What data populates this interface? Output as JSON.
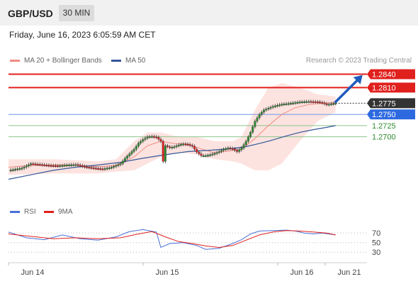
{
  "header": {
    "symbol": "GBP/USD",
    "timeframe": "30 MIN"
  },
  "timestamp": "Friday, June 16, 2023 6:05:59 AM CET",
  "legend": {
    "ma20": {
      "label": "MA 20 + Bollinger Bands",
      "color": "#f08a80"
    },
    "ma50": {
      "label": "MA 50",
      "color": "#34589a"
    },
    "credit": "Research © 2023 Trading Central"
  },
  "levels": [
    {
      "label": "1.2840",
      "value": 1.284,
      "style": "resistance",
      "color": "#e0201d"
    },
    {
      "label": "1.2810",
      "value": 1.281,
      "style": "resistance",
      "color": "#e0201d"
    },
    {
      "label": "1.2775",
      "value": 1.2775,
      "style": "last",
      "color": "#333333"
    },
    {
      "label": "1.2750",
      "value": 1.275,
      "style": "pivot",
      "color": "#2d6ae0"
    },
    {
      "label": "1.2725",
      "value": 1.2725,
      "style": "support",
      "color": "#2e8b2e"
    },
    {
      "label": "1.2700",
      "value": 1.27,
      "style": "support",
      "color": "#2e8b2e"
    }
  ],
  "rsi_legend": {
    "rsi": "RSI",
    "ma": "9MA",
    "rsi_color": "#4a6fd6",
    "ma_color": "#e0201d"
  },
  "rsi_levels": [
    "70",
    "50",
    "30"
  ],
  "x_axis": [
    "Jun 14",
    "Jun 15",
    "Jun 16",
    "Jun 21"
  ],
  "chart_data": {
    "type": "candlestick",
    "price": {
      "points": [
        [
          0,
          1.2625
        ],
        [
          6,
          1.263
        ],
        [
          10,
          1.264
        ],
        [
          14,
          1.2638
        ],
        [
          18,
          1.2636
        ],
        [
          22,
          1.2635
        ],
        [
          26,
          1.2637
        ],
        [
          30,
          1.2638
        ],
        [
          34,
          1.2633
        ],
        [
          38,
          1.263
        ],
        [
          42,
          1.2628
        ],
        [
          46,
          1.2632
        ],
        [
          50,
          1.264
        ],
        [
          52,
          1.2652
        ],
        [
          54,
          1.2662
        ],
        [
          56,
          1.2672
        ],
        [
          58,
          1.2686
        ],
        [
          60,
          1.2694
        ],
        [
          62,
          1.27
        ],
        [
          64,
          1.2701
        ],
        [
          66,
          1.2699
        ],
        [
          68,
          1.269
        ],
        [
          69,
          1.2645
        ],
        [
          70,
          1.268
        ],
        [
          72,
          1.2676
        ],
        [
          74,
          1.2678
        ],
        [
          76,
          1.2682
        ],
        [
          78,
          1.2684
        ],
        [
          80,
          1.2683
        ],
        [
          82,
          1.2679
        ],
        [
          84,
          1.2666
        ],
        [
          86,
          1.2658
        ],
        [
          88,
          1.2658
        ],
        [
          90,
          1.266
        ],
        [
          92,
          1.2663
        ],
        [
          94,
          1.2667
        ],
        [
          96,
          1.2672
        ],
        [
          98,
          1.2675
        ],
        [
          100,
          1.2673
        ],
        [
          102,
          1.2667
        ],
        [
          104,
          1.2675
        ],
        [
          106,
          1.269
        ],
        [
          108,
          1.271
        ],
        [
          110,
          1.2735
        ],
        [
          112,
          1.275
        ],
        [
          114,
          1.276
        ],
        [
          118,
          1.2768
        ],
        [
          122,
          1.2773
        ],
        [
          126,
          1.2775
        ],
        [
          130,
          1.2778
        ],
        [
          134,
          1.2779
        ],
        [
          138,
          1.2778
        ],
        [
          140,
          1.2776
        ],
        [
          142,
          1.2772
        ],
        [
          144,
          1.2774
        ],
        [
          146,
          1.2775
        ]
      ]
    },
    "ma20": [
      [
        0,
        1.2632
      ],
      [
        10,
        1.2636
      ],
      [
        20,
        1.2637
      ],
      [
        30,
        1.2637
      ],
      [
        40,
        1.2633
      ],
      [
        48,
        1.2636
      ],
      [
        56,
        1.2655
      ],
      [
        62,
        1.268
      ],
      [
        68,
        1.269
      ],
      [
        74,
        1.2685
      ],
      [
        80,
        1.2684
      ],
      [
        86,
        1.2673
      ],
      [
        92,
        1.2664
      ],
      [
        98,
        1.2668
      ],
      [
        104,
        1.2672
      ],
      [
        110,
        1.2696
      ],
      [
        116,
        1.2725
      ],
      [
        122,
        1.275
      ],
      [
        128,
        1.2765
      ],
      [
        134,
        1.2772
      ],
      [
        140,
        1.2775
      ],
      [
        146,
        1.2776
      ]
    ],
    "ma50": [
      [
        0,
        1.2605
      ],
      [
        10,
        1.2615
      ],
      [
        20,
        1.2625
      ],
      [
        30,
        1.2632
      ],
      [
        40,
        1.2637
      ],
      [
        50,
        1.2643
      ],
      [
        60,
        1.2652
      ],
      [
        70,
        1.266
      ],
      [
        80,
        1.2667
      ],
      [
        90,
        1.267
      ],
      [
        100,
        1.2674
      ],
      [
        106,
        1.2678
      ],
      [
        112,
        1.2685
      ],
      [
        118,
        1.2693
      ],
      [
        124,
        1.2702
      ],
      [
        130,
        1.271
      ],
      [
        136,
        1.2716
      ],
      [
        142,
        1.2721
      ],
      [
        146,
        1.2725
      ]
    ],
    "bollinger_upper": [
      [
        0,
        1.265
      ],
      [
        20,
        1.265
      ],
      [
        40,
        1.2645
      ],
      [
        48,
        1.265
      ],
      [
        56,
        1.269
      ],
      [
        62,
        1.271
      ],
      [
        68,
        1.271
      ],
      [
        76,
        1.27
      ],
      [
        84,
        1.27
      ],
      [
        92,
        1.269
      ],
      [
        100,
        1.269
      ],
      [
        104,
        1.27
      ],
      [
        110,
        1.276
      ],
      [
        116,
        1.281
      ],
      [
        122,
        1.282
      ],
      [
        130,
        1.281
      ],
      [
        138,
        1.2795
      ],
      [
        146,
        1.279
      ]
    ],
    "bollinger_lower": [
      [
        0,
        1.2615
      ],
      [
        20,
        1.2618
      ],
      [
        40,
        1.2618
      ],
      [
        48,
        1.2622
      ],
      [
        56,
        1.2625
      ],
      [
        62,
        1.264
      ],
      [
        68,
        1.2655
      ],
      [
        76,
        1.2665
      ],
      [
        84,
        1.266
      ],
      [
        92,
        1.265
      ],
      [
        100,
        1.2645
      ],
      [
        104,
        1.264
      ],
      [
        110,
        1.2625
      ],
      [
        116,
        1.2625
      ],
      [
        122,
        1.264
      ],
      [
        130,
        1.269
      ],
      [
        138,
        1.2735
      ],
      [
        146,
        1.2755
      ]
    ],
    "rsi": [
      [
        0,
        72
      ],
      [
        8,
        60
      ],
      [
        16,
        56
      ],
      [
        24,
        66
      ],
      [
        32,
        58
      ],
      [
        40,
        55
      ],
      [
        48,
        62
      ],
      [
        54,
        73
      ],
      [
        60,
        77
      ],
      [
        66,
        72
      ],
      [
        68,
        40
      ],
      [
        72,
        48
      ],
      [
        78,
        50
      ],
      [
        84,
        44
      ],
      [
        88,
        36
      ],
      [
        94,
        38
      ],
      [
        100,
        48
      ],
      [
        104,
        56
      ],
      [
        108,
        68
      ],
      [
        112,
        74
      ],
      [
        118,
        75
      ],
      [
        124,
        76
      ],
      [
        128,
        74
      ],
      [
        132,
        70
      ],
      [
        136,
        68
      ],
      [
        140,
        70
      ],
      [
        146,
        66
      ]
    ],
    "rsi_ma": [
      [
        0,
        68
      ],
      [
        10,
        63
      ],
      [
        20,
        58
      ],
      [
        30,
        60
      ],
      [
        40,
        58
      ],
      [
        50,
        60
      ],
      [
        58,
        68
      ],
      [
        64,
        73
      ],
      [
        70,
        62
      ],
      [
        76,
        52
      ],
      [
        82,
        48
      ],
      [
        88,
        43
      ],
      [
        94,
        40
      ],
      [
        100,
        44
      ],
      [
        106,
        55
      ],
      [
        112,
        66
      ],
      [
        118,
        72
      ],
      [
        124,
        75
      ],
      [
        130,
        74
      ],
      [
        136,
        72
      ],
      [
        142,
        70
      ],
      [
        146,
        66
      ]
    ],
    "y_range": [
      1.259,
      1.2855
    ],
    "x_range": [
      0,
      160
    ],
    "arrow": {
      "from": [
        146,
        1.2778
      ],
      "to": [
        158,
        1.2838
      ]
    }
  }
}
